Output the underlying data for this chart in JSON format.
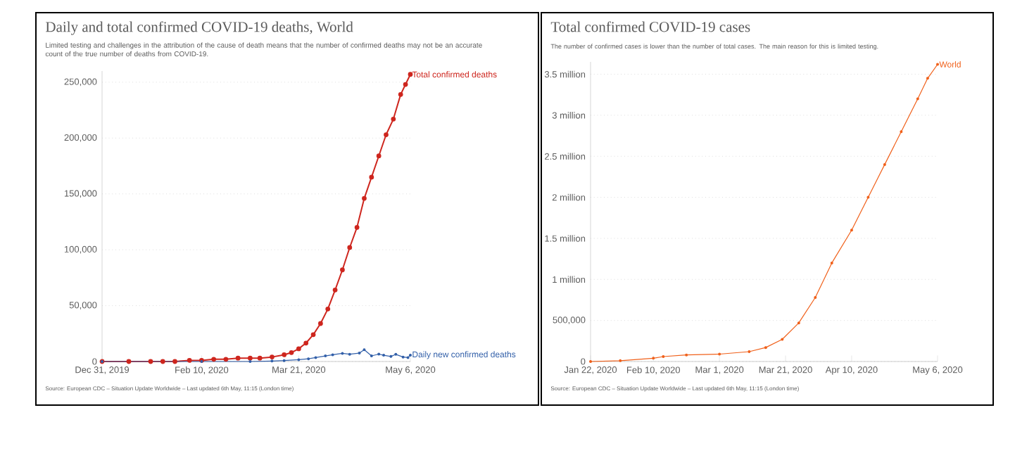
{
  "chart_data": [
    {
      "type": "line",
      "title": "Daily and total confirmed COVID-19 deaths, World",
      "subtitle": "Limited testing and challenges in the attribution of the cause of death means that the number of confirmed deaths may not be an accurate count of the true number of deaths from COVID-19.",
      "series": [
        {
          "name": "Total confirmed deaths",
          "color": "#ce261e",
          "x": [
            "2019-12-31",
            "2020-01-11",
            "2020-01-20",
            "2020-01-25",
            "2020-01-30",
            "2020-02-05",
            "2020-02-10",
            "2020-02-15",
            "2020-02-20",
            "2020-02-25",
            "2020-03-01",
            "2020-03-05",
            "2020-03-10",
            "2020-03-15",
            "2020-03-18",
            "2020-03-21",
            "2020-03-24",
            "2020-03-27",
            "2020-03-30",
            "2020-04-02",
            "2020-04-05",
            "2020-04-08",
            "2020-04-11",
            "2020-04-14",
            "2020-04-17",
            "2020-04-20",
            "2020-04-23",
            "2020-04-26",
            "2020-04-29",
            "2020-05-02",
            "2020-05-04",
            "2020-05-06"
          ],
          "values": [
            0,
            0,
            0,
            0,
            0,
            1000,
            1000,
            2000,
            2000,
            3000,
            3000,
            3000,
            4000,
            6000,
            8000,
            11400,
            16500,
            24000,
            34000,
            47000,
            64000,
            82000,
            102000,
            120000,
            146000,
            165000,
            184000,
            203000,
            217000,
            239000,
            248000,
            257000
          ]
        },
        {
          "name": "Daily new confirmed deaths",
          "color": "#3360a9",
          "x": [
            "2019-12-31",
            "2020-02-10",
            "2020-03-01",
            "2020-03-10",
            "2020-03-15",
            "2020-03-21",
            "2020-03-25",
            "2020-03-28",
            "2020-04-01",
            "2020-04-04",
            "2020-04-08",
            "2020-04-11",
            "2020-04-15",
            "2020-04-17",
            "2020-04-20",
            "2020-04-23",
            "2020-04-25",
            "2020-04-28",
            "2020-04-30",
            "2020-05-03",
            "2020-05-05",
            "2020-05-06"
          ],
          "values": [
            0,
            0,
            0,
            400,
            800,
            1600,
            2400,
            3500,
            5000,
            6000,
            7300,
            6500,
            7500,
            10500,
            5000,
            6600,
            5600,
            4500,
            6400,
            4000,
            3500,
            5700
          ]
        }
      ],
      "xlim": [
        "2019-12-31",
        "2020-05-06"
      ],
      "xticks": [
        {
          "value": "2019-12-31",
          "label": "Dec 31, 2019"
        },
        {
          "value": "2020-02-10",
          "label": "Feb 10, 2020"
        },
        {
          "value": "2020-03-21",
          "label": "Mar 21, 2020"
        },
        {
          "value": "2020-05-06",
          "label": "May 6, 2020"
        }
      ],
      "ylim": [
        0,
        260000
      ],
      "yticks": [
        {
          "value": 0,
          "label": "0"
        },
        {
          "value": 50000,
          "label": "50,000"
        },
        {
          "value": 100000,
          "label": "100,000"
        },
        {
          "value": 150000,
          "label": "150,000"
        },
        {
          "value": 200000,
          "label": "200,000"
        },
        {
          "value": 250000,
          "label": "250,000"
        }
      ],
      "grid": "y",
      "marker": "circle",
      "line_style": "solid",
      "annotations": [
        "Source: European CDC – Situation Update Worldwide – Last updated 6th May, 11:15 (London time)"
      ]
    },
    {
      "type": "line",
      "title": "Total confirmed COVID-19 cases",
      "subtitle": "The number of confirmed cases is lower than the number of total cases. The main reason for this is limited testing.",
      "series": [
        {
          "name": "World",
          "color": "#f0601a",
          "x": [
            "2020-01-22",
            "2020-01-31",
            "2020-02-10",
            "2020-02-13",
            "2020-02-20",
            "2020-03-01",
            "2020-03-10",
            "2020-03-15",
            "2020-03-20",
            "2020-03-25",
            "2020-03-30",
            "2020-04-04",
            "2020-04-10",
            "2020-04-15",
            "2020-04-20",
            "2020-04-25",
            "2020-04-30",
            "2020-05-03",
            "2020-05-06"
          ],
          "values": [
            0,
            10000,
            40000,
            60000,
            80000,
            90000,
            120000,
            170000,
            270000,
            470000,
            780000,
            1200000,
            1600000,
            2000000,
            2400000,
            2800000,
            3200000,
            3450000,
            3620000
          ]
        }
      ],
      "xlim": [
        "2020-01-22",
        "2020-05-06"
      ],
      "xticks": [
        {
          "value": "2020-01-22",
          "label": "Jan 22, 2020"
        },
        {
          "value": "2020-02-10",
          "label": "Feb 10, 2020"
        },
        {
          "value": "2020-03-01",
          "label": "Mar 1, 2020"
        },
        {
          "value": "2020-03-21",
          "label": "Mar 21, 2020"
        },
        {
          "value": "2020-04-10",
          "label": "Apr 10, 2020"
        },
        {
          "value": "2020-05-06",
          "label": "May 6, 2020"
        }
      ],
      "ylim": [
        0,
        3650000
      ],
      "yticks": [
        {
          "value": 0,
          "label": "0"
        },
        {
          "value": 500000,
          "label": "500,000"
        },
        {
          "value": 1000000,
          "label": "1 million"
        },
        {
          "value": 1500000,
          "label": "1.5 million"
        },
        {
          "value": 2000000,
          "label": "2 million"
        },
        {
          "value": 2500000,
          "label": "2.5 million"
        },
        {
          "value": 3000000,
          "label": "3 million"
        },
        {
          "value": 3500000,
          "label": "3.5 million"
        }
      ],
      "grid": "y",
      "marker": "circle",
      "line_style": "solid",
      "annotations": [
        "Source: European CDC – Situation Update Worldwide – Last updated 6th May, 11:15 (London time)"
      ]
    }
  ]
}
